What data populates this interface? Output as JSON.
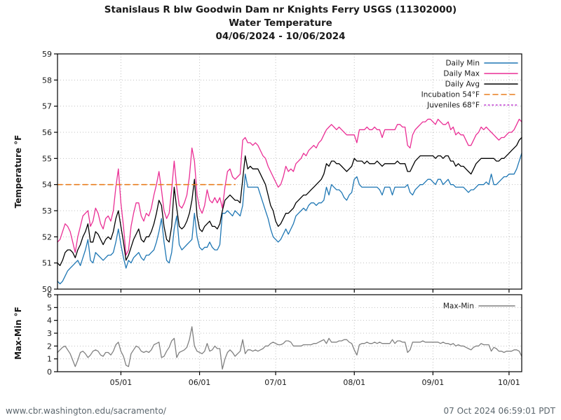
{
  "title": {
    "line1": "Stanislaus R blw Goodwin Dam nr Knights Ferry USGS (11302000)",
    "line2": "Water Temperature",
    "line3": "04/06/2024 - 10/06/2024"
  },
  "footer": {
    "left": "www.cbr.washington.edu/sacramento/",
    "right": "07 Oct 2024 06:59:01 PDT"
  },
  "colors": {
    "daily_min": "#1f77b4",
    "daily_max": "#ea2f95",
    "daily_avg": "#000000",
    "incubation": "#e87d1e",
    "juveniles": "#bd33d1",
    "max_min": "#808080",
    "grid": "#c0c0c0",
    "frame": "#000000",
    "footer_text": "#5b666d"
  },
  "chart_data": [
    {
      "type": "line",
      "title": "",
      "ylabel": "Temperature °F",
      "xlabel": "",
      "ylim": [
        50,
        59
      ],
      "y_ticks": [
        50,
        51,
        52,
        53,
        54,
        55,
        56,
        57,
        58,
        59
      ],
      "x_start_date": "04/06/2024",
      "x_end_date": "10/06/2024",
      "x_total_days": 183,
      "x_ticks": [
        {
          "day": 25,
          "label": "05/01"
        },
        {
          "day": 56,
          "label": "06/01"
        },
        {
          "day": 86,
          "label": "07/01"
        },
        {
          "day": 117,
          "label": "08/01"
        },
        {
          "day": 148,
          "label": "09/01"
        },
        {
          "day": 178,
          "label": "10/01"
        }
      ],
      "grid": true,
      "legend_position": "upper right",
      "series": [
        {
          "name": "Daily Min",
          "color": "#1f77b4",
          "style": "solid",
          "values": [
            50.3,
            50.2,
            50.3,
            50.5,
            50.7,
            50.8,
            50.9,
            51.0,
            51.1,
            50.9,
            51.2,
            51.5,
            51.9,
            51.1,
            51.0,
            51.4,
            51.3,
            51.2,
            51.1,
            51.2,
            51.3,
            51.3,
            51.4,
            51.8,
            52.3,
            51.7,
            51.2,
            50.8,
            51.1,
            51.0,
            51.2,
            51.3,
            51.4,
            51.2,
            51.1,
            51.3,
            51.3,
            51.4,
            51.5,
            51.8,
            52.2,
            52.7,
            51.8,
            51.1,
            51.0,
            51.4,
            52.3,
            52.8,
            51.7,
            51.5,
            51.6,
            51.7,
            51.8,
            51.9,
            52.9,
            52.0,
            51.6,
            51.5,
            51.6,
            51.6,
            51.8,
            51.6,
            51.5,
            51.5,
            51.7,
            52.9,
            52.9,
            53.0,
            52.9,
            52.8,
            53.0,
            52.9,
            52.8,
            53.2,
            54.4,
            53.9,
            53.9,
            53.9,
            53.9,
            53.9,
            53.6,
            53.3,
            53.0,
            52.7,
            52.3,
            52.0,
            51.9,
            51.8,
            51.9,
            52.1,
            52.3,
            52.1,
            52.3,
            52.5,
            52.8,
            52.9,
            53.0,
            53.1,
            53.0,
            53.2,
            53.3,
            53.3,
            53.2,
            53.3,
            53.3,
            53.4,
            53.9,
            53.6,
            54.0,
            53.9,
            53.8,
            53.8,
            53.7,
            53.5,
            53.4,
            53.6,
            53.7,
            54.2,
            54.3,
            54.0,
            53.9,
            53.9,
            53.9,
            53.9,
            53.9,
            53.9,
            53.9,
            53.8,
            53.6,
            53.9,
            53.9,
            53.9,
            53.6,
            53.9,
            53.9,
            53.9,
            53.9,
            53.9,
            54.0,
            53.7,
            53.6,
            53.8,
            53.9,
            54.0,
            54.0,
            54.1,
            54.2,
            54.2,
            54.1,
            54.0,
            54.2,
            54.2,
            54.0,
            54.1,
            54.2,
            54.0,
            54.0,
            53.9,
            53.9,
            53.9,
            53.9,
            53.8,
            53.7,
            53.8,
            53.8,
            53.9,
            54.0,
            54.0,
            54.0,
            54.1,
            54.0,
            54.4,
            54.0,
            54.0,
            54.1,
            54.2,
            54.3,
            54.3,
            54.4,
            54.4,
            54.4,
            54.6,
            54.9,
            55.2
          ]
        },
        {
          "name": "Daily Max",
          "color": "#ea2f95",
          "style": "solid",
          "values": [
            51.8,
            51.9,
            52.2,
            52.5,
            52.4,
            52.2,
            51.8,
            51.4,
            52.0,
            52.4,
            52.8,
            52.9,
            53.0,
            52.4,
            52.6,
            53.1,
            52.9,
            52.5,
            52.3,
            52.7,
            52.8,
            52.6,
            53.0,
            53.9,
            54.6,
            53.3,
            52.4,
            51.3,
            51.5,
            52.4,
            52.9,
            53.3,
            53.3,
            52.8,
            52.6,
            52.9,
            52.8,
            53.1,
            53.6,
            54.0,
            54.5,
            53.8,
            53.0,
            52.7,
            52.9,
            53.8,
            54.9,
            53.9,
            53.2,
            53.1,
            53.3,
            53.6,
            54.3,
            55.4,
            54.9,
            53.6,
            53.1,
            52.9,
            53.2,
            53.8,
            53.4,
            53.3,
            53.5,
            53.3,
            53.5,
            53.1,
            53.9,
            54.5,
            54.6,
            54.3,
            54.2,
            54.3,
            54.4,
            55.7,
            55.8,
            55.6,
            55.6,
            55.5,
            55.6,
            55.5,
            55.3,
            55.1,
            55.0,
            54.7,
            54.5,
            54.3,
            54.1,
            53.9,
            54.0,
            54.3,
            54.7,
            54.5,
            54.6,
            54.5,
            54.8,
            54.9,
            55.0,
            55.2,
            55.1,
            55.3,
            55.4,
            55.5,
            55.4,
            55.6,
            55.7,
            55.9,
            56.1,
            56.2,
            56.3,
            56.2,
            56.1,
            56.2,
            56.1,
            56.0,
            55.9,
            55.9,
            55.9,
            55.9,
            55.6,
            56.1,
            56.1,
            56.1,
            56.2,
            56.1,
            56.1,
            56.2,
            56.1,
            56.1,
            55.8,
            56.1,
            56.1,
            56.1,
            56.1,
            56.1,
            56.3,
            56.3,
            56.2,
            56.2,
            55.5,
            55.4,
            55.9,
            56.1,
            56.2,
            56.3,
            56.4,
            56.4,
            56.5,
            56.5,
            56.4,
            56.3,
            56.5,
            56.4,
            56.3,
            56.3,
            56.4,
            56.1,
            56.2,
            55.9,
            56.0,
            55.9,
            55.9,
            55.7,
            55.5,
            55.5,
            55.7,
            55.9,
            56.0,
            56.2,
            56.1,
            56.2,
            56.1,
            56.0,
            55.9,
            55.8,
            55.7,
            55.8,
            55.8,
            55.9,
            56.0,
            56.0,
            56.1,
            56.3,
            56.5,
            56.4
          ]
        },
        {
          "name": "Daily Avg",
          "color": "#000000",
          "style": "solid",
          "values": [
            51.0,
            50.9,
            51.1,
            51.4,
            51.5,
            51.5,
            51.4,
            51.2,
            51.5,
            51.7,
            52.0,
            52.2,
            52.5,
            51.8,
            51.8,
            52.2,
            52.1,
            51.9,
            51.7,
            51.9,
            52.0,
            51.9,
            52.2,
            52.7,
            53.0,
            52.4,
            51.8,
            51.1,
            51.3,
            51.6,
            51.9,
            52.1,
            52.3,
            51.9,
            51.8,
            52.0,
            52.0,
            52.2,
            52.5,
            52.9,
            53.4,
            53.2,
            52.4,
            51.9,
            51.8,
            52.4,
            53.9,
            53.1,
            52.4,
            52.3,
            52.4,
            52.6,
            52.9,
            53.4,
            54.2,
            52.8,
            52.3,
            52.2,
            52.4,
            52.5,
            52.6,
            52.4,
            52.4,
            52.3,
            52.5,
            53.0,
            53.4,
            53.5,
            53.6,
            53.5,
            53.4,
            53.4,
            53.3,
            54.2,
            55.1,
            54.6,
            54.7,
            54.6,
            54.6,
            54.6,
            54.4,
            54.2,
            54.0,
            53.6,
            53.2,
            53.0,
            52.6,
            52.4,
            52.5,
            52.7,
            52.9,
            52.9,
            53.0,
            53.1,
            53.3,
            53.4,
            53.5,
            53.6,
            53.6,
            53.7,
            53.8,
            53.9,
            54.0,
            54.1,
            54.2,
            54.4,
            54.8,
            54.7,
            54.9,
            54.9,
            54.8,
            54.8,
            54.7,
            54.6,
            54.5,
            54.6,
            54.7,
            55.0,
            54.9,
            54.9,
            54.9,
            54.8,
            54.9,
            54.8,
            54.8,
            54.8,
            54.9,
            54.8,
            54.7,
            54.8,
            54.8,
            54.8,
            54.8,
            54.8,
            54.9,
            54.8,
            54.8,
            54.8,
            54.5,
            54.5,
            54.7,
            54.9,
            55.0,
            55.1,
            55.1,
            55.1,
            55.1,
            55.1,
            55.1,
            55.0,
            55.1,
            55.1,
            55.0,
            55.1,
            55.1,
            54.9,
            54.9,
            54.7,
            54.8,
            54.7,
            54.7,
            54.6,
            54.5,
            54.4,
            54.6,
            54.8,
            54.9,
            55.0,
            55.0,
            55.0,
            55.0,
            55.0,
            55.0,
            54.9,
            54.9,
            55.0,
            55.0,
            55.1,
            55.2,
            55.3,
            55.4,
            55.5,
            55.7,
            55.8
          ]
        },
        {
          "name": "Incubation 54°F",
          "color": "#e87d1e",
          "style": "dashed",
          "threshold": 54,
          "span_days": [
            0,
            70
          ]
        },
        {
          "name": "Juveniles 68°F",
          "color": "#bd33d1",
          "style": "dotted",
          "threshold": 68,
          "span_days": [
            0,
            183
          ]
        }
      ]
    },
    {
      "type": "line",
      "title": "",
      "ylabel": "Max-Min °F",
      "xlabel": "",
      "ylim": [
        0,
        6
      ],
      "y_ticks": [
        0,
        1,
        2,
        3,
        4,
        5,
        6
      ],
      "x_total_days": 183,
      "x_ticks": [
        {
          "day": 25,
          "label": "05/01"
        },
        {
          "day": 56,
          "label": "06/01"
        },
        {
          "day": 86,
          "label": "07/01"
        },
        {
          "day": 117,
          "label": "08/01"
        },
        {
          "day": 148,
          "label": "09/01"
        },
        {
          "day": 178,
          "label": "10/01"
        }
      ],
      "grid": true,
      "legend_position": "upper right",
      "series": [
        {
          "name": "Max-Min",
          "color": "#808080",
          "style": "solid",
          "values": [
            1.5,
            1.7,
            1.9,
            2.0,
            1.7,
            1.4,
            0.9,
            0.4,
            0.9,
            1.5,
            1.6,
            1.4,
            1.1,
            1.3,
            1.6,
            1.7,
            1.6,
            1.3,
            1.2,
            1.5,
            1.5,
            1.3,
            1.6,
            2.1,
            2.3,
            1.6,
            1.2,
            0.5,
            0.4,
            1.4,
            1.7,
            2.0,
            1.9,
            1.6,
            1.5,
            1.6,
            1.5,
            1.7,
            2.1,
            2.2,
            2.3,
            1.1,
            1.2,
            1.6,
            1.9,
            2.4,
            2.6,
            1.1,
            1.5,
            1.6,
            1.7,
            1.9,
            2.5,
            3.5,
            2.0,
            1.6,
            1.5,
            1.4,
            1.6,
            2.2,
            1.6,
            1.7,
            2.0,
            1.8,
            1.8,
            0.2,
            1.0,
            1.5,
            1.7,
            1.5,
            1.2,
            1.4,
            1.6,
            2.5,
            1.4,
            1.7,
            1.7,
            1.6,
            1.7,
            1.6,
            1.7,
            1.8,
            2.0,
            2.0,
            2.2,
            2.3,
            2.2,
            2.1,
            2.1,
            2.2,
            2.4,
            2.4,
            2.3,
            2.0,
            2.0,
            2.0,
            2.0,
            2.1,
            2.1,
            2.1,
            2.1,
            2.2,
            2.2,
            2.3,
            2.4,
            2.5,
            2.2,
            2.6,
            2.3,
            2.3,
            2.3,
            2.4,
            2.4,
            2.5,
            2.5,
            2.3,
            2.2,
            1.7,
            1.3,
            2.1,
            2.2,
            2.2,
            2.3,
            2.2,
            2.2,
            2.3,
            2.2,
            2.3,
            2.2,
            2.2,
            2.2,
            2.2,
            2.5,
            2.2,
            2.4,
            2.4,
            2.3,
            2.3,
            1.5,
            1.7,
            2.3,
            2.3,
            2.3,
            2.3,
            2.4,
            2.3,
            2.3,
            2.3,
            2.3,
            2.3,
            2.3,
            2.2,
            2.3,
            2.2,
            2.2,
            2.1,
            2.2,
            2.0,
            2.1,
            2.0,
            2.0,
            1.9,
            1.8,
            1.7,
            1.9,
            2.0,
            2.0,
            2.2,
            2.1,
            2.1,
            2.1,
            1.6,
            1.9,
            1.8,
            1.6,
            1.6,
            1.5,
            1.6,
            1.6,
            1.6,
            1.7,
            1.7,
            1.6,
            1.2
          ]
        }
      ]
    }
  ]
}
